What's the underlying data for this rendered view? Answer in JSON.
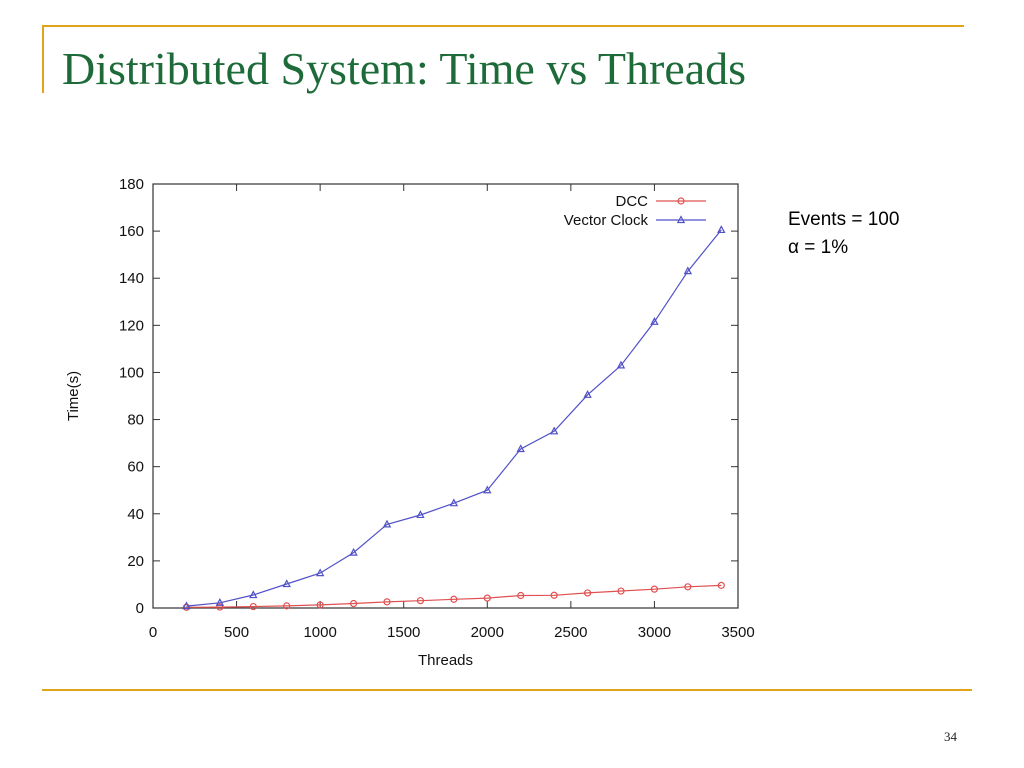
{
  "slide": {
    "title": "Distributed System: Time vs Threads",
    "notes": [
      "Events = 100",
      "α  = 1%"
    ],
    "page_number": "34"
  },
  "colors": {
    "frame": "#e0a418",
    "title": "#1e6b3a",
    "dcc": "#e05050",
    "vector_clock": "#5050c8"
  },
  "chart_data": {
    "type": "line",
    "title": "",
    "xlabel": "Threads",
    "ylabel": "Time(s)",
    "xlim": [
      0,
      3500
    ],
    "ylim": [
      0,
      180
    ],
    "xticks": [
      0,
      500,
      1000,
      1500,
      2000,
      2500,
      3000,
      3500
    ],
    "yticks": [
      0,
      20,
      40,
      60,
      80,
      100,
      120,
      140,
      160,
      180
    ],
    "grid": false,
    "legend": "top-right",
    "x": [
      200,
      400,
      600,
      800,
      1000,
      1200,
      1400,
      1600,
      1800,
      2000,
      2200,
      2400,
      2600,
      2800,
      3000,
      3200,
      3400
    ],
    "series": [
      {
        "name": "DCC",
        "marker": "circle",
        "values": [
          0.3,
          0.4,
          0.6,
          0.9,
          1.3,
          1.9,
          2.6,
          3.1,
          3.7,
          4.2,
          5.3,
          5.4,
          6.4,
          7.2,
          8.0,
          9.0,
          9.6
        ]
      },
      {
        "name": "Vector Clock",
        "marker": "triangle",
        "values": [
          0.8,
          2.2,
          5.5,
          10.2,
          14.8,
          23.5,
          35.5,
          39.5,
          44.5,
          50.0,
          67.5,
          75.0,
          90.5,
          103.0,
          121.5,
          143.0,
          160.5
        ]
      }
    ]
  }
}
